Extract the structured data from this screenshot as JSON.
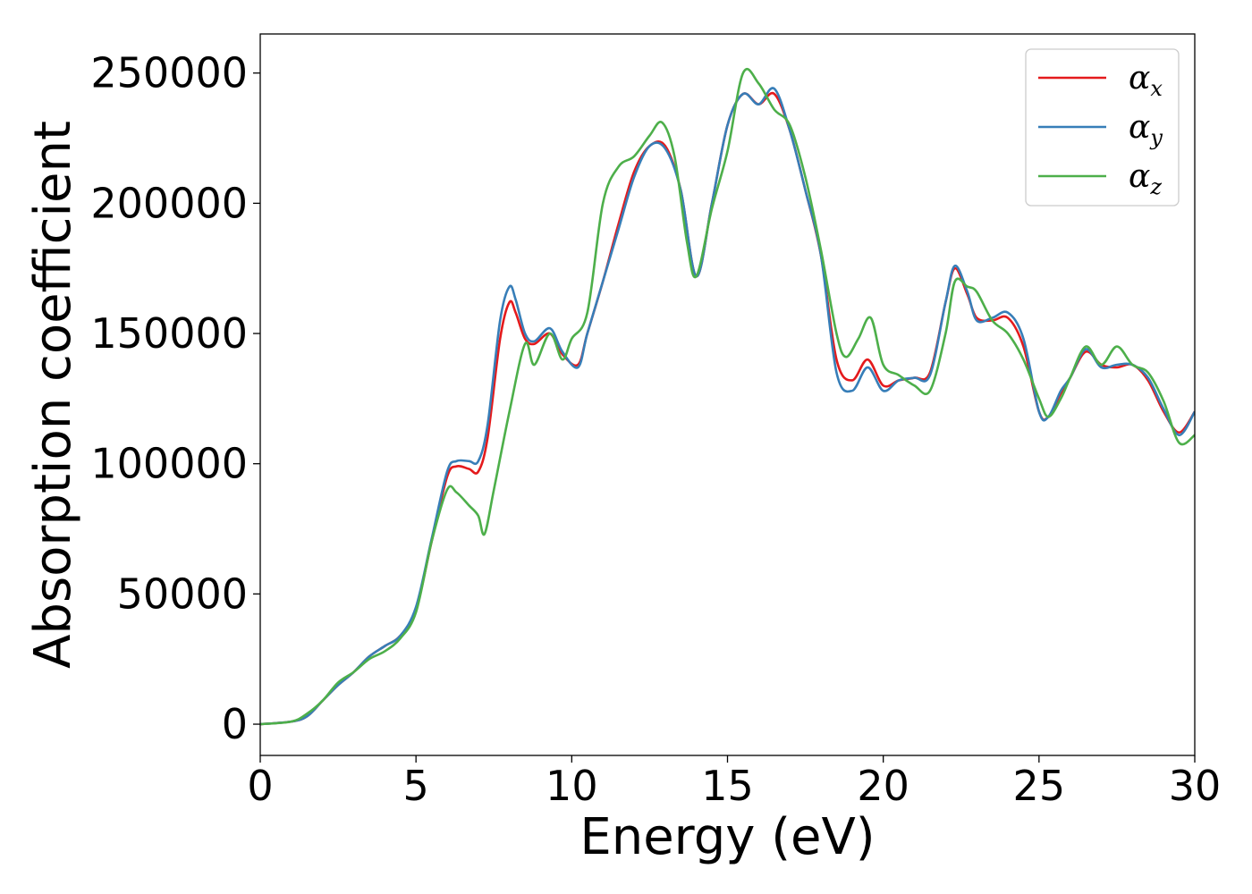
{
  "chart_data": {
    "type": "line",
    "title": "",
    "xlabel": "Energy (eV)",
    "ylabel": "Absorption coefficient",
    "xlim": [
      0,
      30
    ],
    "ylim": [
      -12000,
      265000
    ],
    "xticks": [
      0,
      5,
      10,
      15,
      20,
      25,
      30
    ],
    "xtick_labels": [
      "0",
      "5",
      "10",
      "15",
      "20",
      "25",
      "30"
    ],
    "yticks": [
      0,
      50000,
      100000,
      150000,
      200000,
      250000
    ],
    "ytick_labels": [
      "0",
      "50000",
      "100000",
      "150000",
      "200000",
      "250000"
    ],
    "grid": false,
    "legend_position": "top-right",
    "series": [
      {
        "name": "α",
        "subscript": "x",
        "color": "#e41a1c",
        "x": [
          0,
          1,
          1.5,
          2,
          2.5,
          3,
          3.5,
          4,
          4.5,
          5,
          5.5,
          6,
          6.3,
          6.7,
          7,
          7.3,
          7.7,
          8,
          8.2,
          8.5,
          8.8,
          9.3,
          9.7,
          10.2,
          10.5,
          11,
          11.5,
          12,
          12.5,
          13,
          13.5,
          14,
          14.5,
          15,
          15.5,
          16,
          16.5,
          17,
          17.5,
          18,
          18.5,
          19,
          19.5,
          20,
          20.5,
          21,
          21.5,
          22,
          22.3,
          22.7,
          23,
          23.5,
          24,
          24.5,
          25,
          25.3,
          25.7,
          26,
          26.5,
          27,
          27.5,
          28,
          28.5,
          29,
          29.5,
          30
        ],
        "y": [
          0,
          1000,
          3000,
          9000,
          15000,
          20000,
          26000,
          30000,
          34000,
          44000,
          70000,
          95000,
          99000,
          98000,
          97000,
          110000,
          148000,
          162000,
          158000,
          148000,
          146000,
          150000,
          142000,
          138000,
          150000,
          170000,
          192000,
          212000,
          222000,
          222000,
          205000,
          172000,
          200000,
          230000,
          242000,
          238000,
          242000,
          228000,
          205000,
          180000,
          140000,
          132000,
          140000,
          130000,
          132000,
          133000,
          135000,
          162000,
          175000,
          165000,
          156000,
          155000,
          156000,
          145000,
          120000,
          118000,
          127000,
          133000,
          143000,
          138000,
          137000,
          138000,
          132000,
          120000,
          112000,
          120000
        ]
      },
      {
        "name": "α",
        "subscript": "y",
        "color": "#377eb8",
        "x": [
          0,
          1,
          1.5,
          2,
          2.5,
          3,
          3.5,
          4,
          4.5,
          5,
          5.5,
          6,
          6.3,
          6.7,
          7,
          7.3,
          7.7,
          8,
          8.2,
          8.5,
          8.8,
          9.3,
          9.7,
          10.2,
          10.5,
          11,
          11.5,
          12,
          12.5,
          13,
          13.5,
          14,
          14.5,
          15,
          15.5,
          16,
          16.5,
          17,
          17.5,
          18,
          18.5,
          19,
          19.5,
          20,
          20.5,
          21,
          21.5,
          22,
          22.3,
          22.7,
          23,
          23.5,
          24,
          24.5,
          25,
          25.3,
          25.7,
          26,
          26.5,
          27,
          27.5,
          28,
          28.5,
          29,
          29.5,
          30
        ],
        "y": [
          0,
          1000,
          3000,
          9000,
          15000,
          20000,
          26000,
          30000,
          34000,
          45000,
          71000,
          97000,
          101000,
          101000,
          101000,
          115000,
          155000,
          168000,
          163000,
          150000,
          147000,
          152000,
          143000,
          137000,
          150000,
          170000,
          190000,
          210000,
          222000,
          221000,
          205000,
          172000,
          200000,
          230000,
          242000,
          238000,
          244000,
          228000,
          205000,
          180000,
          135000,
          128000,
          137000,
          128000,
          132000,
          133000,
          134000,
          162000,
          176000,
          166000,
          155000,
          156000,
          158000,
          148000,
          120000,
          118000,
          128000,
          133000,
          144000,
          137000,
          138000,
          138000,
          133000,
          121000,
          111000,
          120000
        ]
      },
      {
        "name": "α",
        "subscript": "z",
        "color": "#4daf4a",
        "x": [
          0,
          1,
          1.5,
          2,
          2.5,
          3,
          3.5,
          4,
          4.5,
          5,
          5.5,
          6,
          6.3,
          6.7,
          7,
          7.2,
          7.5,
          8,
          8.5,
          8.8,
          9.3,
          9.7,
          10,
          10.5,
          11,
          11.5,
          12,
          12.5,
          12.9,
          13.3,
          13.7,
          14,
          14.5,
          15,
          15.5,
          16,
          16.5,
          17,
          17.5,
          18,
          18.5,
          18.8,
          19.2,
          19.6,
          20,
          20.5,
          21,
          21.5,
          22,
          22.3,
          22.7,
          23,
          23.5,
          24,
          24.5,
          25,
          25.3,
          25.7,
          26,
          26.5,
          27,
          27.5,
          28,
          28.5,
          29,
          29.5,
          30
        ],
        "y": [
          0,
          1000,
          4000,
          9000,
          16000,
          20000,
          25000,
          28000,
          33000,
          43000,
          70000,
          90000,
          89000,
          84000,
          80000,
          73000,
          90000,
          120000,
          146000,
          138000,
          150000,
          140000,
          148000,
          158000,
          200000,
          214000,
          218000,
          226000,
          231000,
          218000,
          185000,
          172000,
          198000,
          220000,
          250000,
          246000,
          236000,
          230000,
          210000,
          182000,
          150000,
          141000,
          148000,
          156000,
          138000,
          134000,
          130000,
          128000,
          150000,
          170000,
          168000,
          166000,
          155000,
          150000,
          140000,
          125000,
          118000,
          125000,
          133000,
          145000,
          138000,
          145000,
          138000,
          135000,
          124000,
          108000,
          111000
        ]
      }
    ]
  }
}
